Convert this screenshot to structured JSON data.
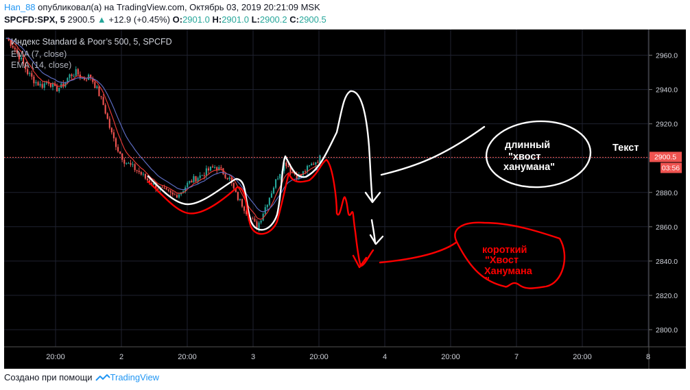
{
  "header": {
    "user": "Han_88",
    "published_text": "опубликовал(а) на TradingView.com, Октябрь 03, 2019 20:21:09 MSK",
    "symbol": "SPCFD:SPX, 5",
    "price": "2900.5",
    "change": "+12.9 (+0.45%)",
    "o_label": "O:",
    "o_value": "2901.0",
    "h_label": "H:",
    "h_value": "2901.0",
    "l_label": "L:",
    "l_value": "2900.2",
    "c_label": "C:",
    "c_value": "2900.5"
  },
  "legend": {
    "instrument": "Индекс Standard & Poor’s 500, 5, SPCFD",
    "ema7": "EMA (7, close)",
    "ema14": "EMA (14, close)"
  },
  "price_tag": {
    "value": "2900.5",
    "time": "03:56"
  },
  "annotations": {
    "white_label_line1": "длинный",
    "white_label_line2": "\"хвост",
    "white_label_line3": "ханумана\"",
    "red_label_line1": "короткий",
    "red_label_line2": "\"Хвост",
    "red_label_line3": "Ханумана",
    "red_label_line4": "\"",
    "text_label": "Текст"
  },
  "colors": {
    "up": "#26a69a",
    "down": "#ef5350",
    "ema7": "#e53935",
    "ema14": "#5c6bc0",
    "price_tag": "#ef5350",
    "annotation_white": "#ffffff",
    "annotation_red": "#ff0000"
  },
  "chart_data": {
    "type": "candlestick",
    "y_ticks": [
      "2960.0",
      "2940.0",
      "2920.0",
      "2900.0",
      "2880.0",
      "2860.0",
      "2840.0",
      "2820.0",
      "2800.0"
    ],
    "x_ticks": [
      "20:00",
      "2",
      "20:00",
      "3",
      "20:00",
      "4",
      "20:00",
      "7",
      "20:00",
      "8"
    ],
    "ylim": [
      2790,
      2975
    ],
    "close_path": [
      2970,
      2965,
      2958,
      2950,
      2945,
      2942,
      2945,
      2940,
      2942,
      2948,
      2950,
      2946,
      2948,
      2940,
      2930,
      2915,
      2905,
      2898,
      2895,
      2892,
      2888,
      2885,
      2882,
      2880,
      2878,
      2880,
      2885,
      2888,
      2890,
      2893,
      2895,
      2892,
      2888,
      2878,
      2872,
      2865,
      2860,
      2870,
      2880,
      2890,
      2898,
      2892,
      2889,
      2893,
      2897,
      2900
    ]
  },
  "footer": {
    "created_with": "Создано при помощи",
    "brand": "TradingView"
  }
}
